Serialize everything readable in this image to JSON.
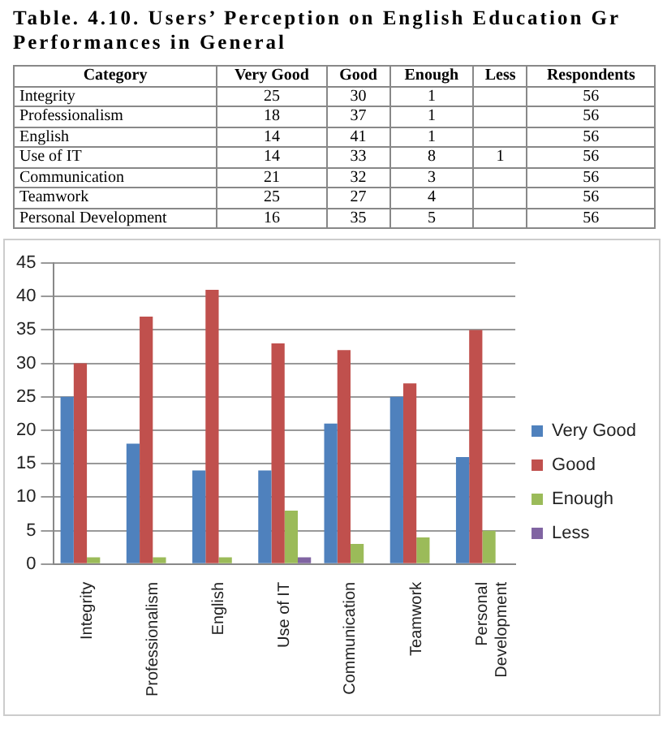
{
  "chart_data": [
    {
      "type": "other",
      "title": "Table. 4.10. Users’ Perception on English Education Gr Performances in General",
      "xlabel": "Category",
      "data_labels": true,
      "categories": [
        "Integrity",
        "Professionalism",
        "English",
        "Use of IT",
        "Communication",
        "Teamwork",
        "Personal Development"
      ],
      "series": [
        {
          "name": "Very Good",
          "values": [
            25,
            18,
            14,
            14,
            21,
            25,
            16
          ]
        },
        {
          "name": "Good",
          "values": [
            30,
            37,
            41,
            33,
            32,
            27,
            35
          ]
        },
        {
          "name": "Enough",
          "values": [
            1,
            1,
            1,
            8,
            3,
            4,
            5
          ]
        },
        {
          "name": "Less",
          "values": [
            null,
            null,
            null,
            1,
            null,
            null,
            null
          ]
        },
        {
          "name": "Respondents",
          "values": [
            56,
            56,
            56,
            56,
            56,
            56,
            56
          ]
        }
      ]
    },
    {
      "type": "bar",
      "categories": [
        "Integrity",
        "Professionalism",
        "English",
        "Use of IT",
        "Communication",
        "Teamwork",
        "Personal Development"
      ],
      "series": [
        {
          "name": "Very Good",
          "color": "#4f81bd",
          "values": [
            25,
            18,
            14,
            14,
            21,
            25,
            16
          ]
        },
        {
          "name": "Good",
          "color": "#c0504d",
          "values": [
            30,
            37,
            41,
            33,
            32,
            27,
            35
          ]
        },
        {
          "name": "Enough",
          "color": "#9bbb59",
          "values": [
            1,
            1,
            1,
            8,
            3,
            4,
            5
          ]
        },
        {
          "name": "Less",
          "color": "#8064a2",
          "values": [
            null,
            null,
            null,
            1,
            null,
            null,
            null
          ]
        }
      ],
      "ylim": [
        0,
        45
      ],
      "yticks": [
        0,
        5,
        10,
        15,
        20,
        25,
        30,
        35,
        40,
        45
      ],
      "grid": "y",
      "legend": "right"
    }
  ]
}
